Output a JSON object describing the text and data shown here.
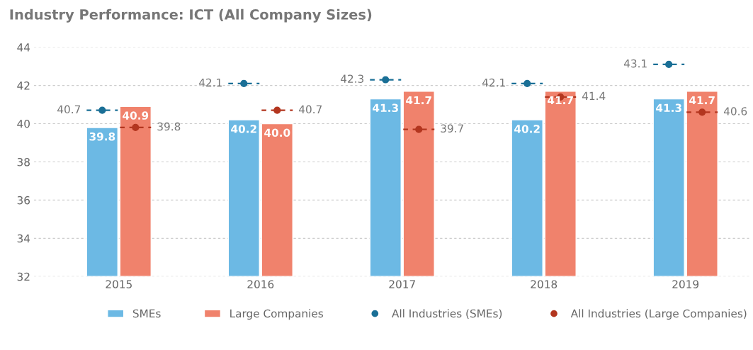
{
  "chart_data": {
    "type": "bar",
    "title": "Industry Performance: ICT (All Company Sizes)",
    "categories": [
      "2015",
      "2016",
      "2017",
      "2018",
      "2019"
    ],
    "series": [
      {
        "name": "SMEs",
        "color": "#6cb9e4",
        "values": [
          39.8,
          40.2,
          41.3,
          40.2,
          41.3
        ]
      },
      {
        "name": "Large Companies",
        "color": "#f0826c",
        "values": [
          40.9,
          40.0,
          41.7,
          41.7,
          41.7
        ],
        "value_labels": [
          "40.9",
          "40.0",
          "41.7",
          "41.7",
          "41.7"
        ]
      },
      {
        "name": "All Industries (SMEs)",
        "type": "scatter",
        "color": "#1a6f96",
        "line_style": "dashed",
        "values": [
          40.7,
          42.1,
          42.3,
          42.1,
          43.1
        ]
      },
      {
        "name": "All Industries (Large Companies)",
        "type": "scatter",
        "color": "#b3361f",
        "line_style": "dashed",
        "values": [
          39.8,
          40.7,
          39.7,
          41.4,
          40.6
        ]
      }
    ],
    "ylim": [
      32,
      44
    ],
    "yticks": [
      32,
      34,
      36,
      38,
      40,
      42,
      44
    ],
    "grid": "y",
    "legend": "bottom",
    "marker": "circle",
    "data_labels": true
  }
}
